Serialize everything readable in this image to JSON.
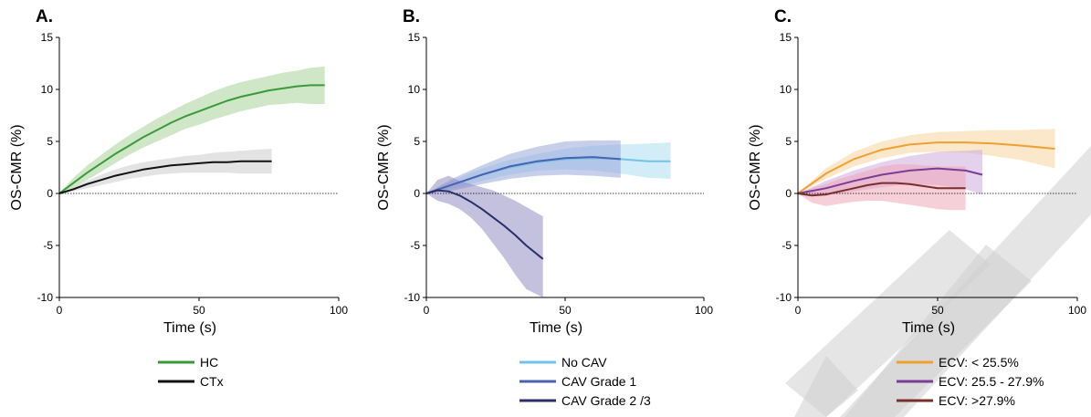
{
  "figure": {
    "background": "#ffffff",
    "watermark": "diagonal-grey-stripes"
  },
  "chart_data": [
    {
      "panel": "A.",
      "type": "line",
      "xlabel": "Time (s)",
      "ylabel": "OS-CMR (%)",
      "xlim": [
        0,
        100
      ],
      "ylim": [
        -10,
        15
      ],
      "xticks": [
        0,
        50,
        100
      ],
      "yticks": [
        -10,
        -5,
        0,
        5,
        10,
        15
      ],
      "reference_line_y": 0,
      "legend_position": "below",
      "series": [
        {
          "name": "HC",
          "color": "#3a9a3a",
          "band_color": "#9fd08e",
          "x": [
            0,
            5,
            10,
            15,
            20,
            25,
            30,
            35,
            40,
            45,
            50,
            55,
            60,
            65,
            70,
            75,
            80,
            85,
            90,
            95
          ],
          "y": [
            0,
            1.0,
            2.0,
            2.9,
            3.8,
            4.6,
            5.4,
            6.1,
            6.8,
            7.4,
            7.9,
            8.4,
            8.9,
            9.3,
            9.6,
            9.9,
            10.1,
            10.3,
            10.4,
            10.4
          ],
          "lower": [
            0,
            0.5,
            1.3,
            2.1,
            2.9,
            3.7,
            4.4,
            5.0,
            5.6,
            6.2,
            6.6,
            7.1,
            7.5,
            7.9,
            8.2,
            8.5,
            8.6,
            8.7,
            8.6,
            8.6
          ],
          "upper": [
            0,
            1.5,
            2.7,
            3.7,
            4.7,
            5.6,
            6.4,
            7.2,
            7.9,
            8.6,
            9.2,
            9.8,
            10.3,
            10.7,
            11.0,
            11.3,
            11.6,
            11.8,
            12.1,
            12.2
          ]
        },
        {
          "name": "CTx",
          "color": "#111111",
          "band_color": "#c7c7c7",
          "x": [
            0,
            5,
            10,
            15,
            20,
            25,
            30,
            35,
            40,
            45,
            50,
            55,
            60,
            65,
            70,
            76
          ],
          "y": [
            0,
            0.4,
            0.9,
            1.3,
            1.7,
            2.0,
            2.3,
            2.5,
            2.7,
            2.8,
            2.9,
            3.0,
            3.0,
            3.1,
            3.1,
            3.1
          ],
          "lower": [
            0,
            0.2,
            0.5,
            0.8,
            1.1,
            1.4,
            1.6,
            1.8,
            1.9,
            2.0,
            2.0,
            2.0,
            2.0,
            1.9,
            1.9,
            1.9
          ],
          "upper": [
            0,
            0.6,
            1.2,
            1.8,
            2.3,
            2.7,
            3.0,
            3.2,
            3.4,
            3.6,
            3.7,
            3.9,
            4.0,
            4.1,
            4.2,
            4.3
          ]
        }
      ]
    },
    {
      "panel": "B.",
      "type": "line",
      "xlabel": "Time (s)",
      "ylabel": "OS-CMR (%)",
      "xlim": [
        0,
        100
      ],
      "ylim": [
        -10,
        15
      ],
      "xticks": [
        0,
        50,
        100
      ],
      "yticks": [
        -10,
        -5,
        0,
        5,
        10,
        15
      ],
      "reference_line_y": 0,
      "legend_position": "below",
      "series": [
        {
          "name": "No CAV",
          "color": "#6fc3e8",
          "band_color": "#a8dcf2",
          "x": [
            0,
            10,
            20,
            30,
            40,
            50,
            60,
            70,
            80,
            88
          ],
          "y": [
            0,
            0.9,
            1.8,
            2.5,
            3.0,
            3.3,
            3.4,
            3.3,
            3.1,
            3.1
          ],
          "lower": [
            0,
            0.5,
            1.2,
            1.8,
            2.2,
            2.3,
            2.2,
            1.9,
            1.5,
            1.4
          ],
          "upper": [
            0,
            1.3,
            2.4,
            3.2,
            3.8,
            4.3,
            4.6,
            4.7,
            4.8,
            4.9
          ]
        },
        {
          "name": "CAV Grade 1",
          "color": "#4a62b0",
          "band_color": "#8fa0d8",
          "x": [
            0,
            10,
            20,
            30,
            40,
            50,
            60,
            70
          ],
          "y": [
            0,
            0.9,
            1.8,
            2.6,
            3.1,
            3.4,
            3.5,
            3.3
          ],
          "lower": [
            0,
            0.3,
            0.9,
            1.4,
            1.7,
            1.8,
            1.7,
            1.5
          ],
          "upper": [
            0,
            1.5,
            2.7,
            3.8,
            4.5,
            5.0,
            5.1,
            5.1
          ]
        },
        {
          "name": "CAV Grade 2 /3",
          "color": "#2a2f6b",
          "band_color": "#8a84bf",
          "x": [
            0,
            4,
            8,
            12,
            16,
            20,
            24,
            28,
            32,
            36,
            42
          ],
          "y": [
            0,
            0.3,
            0.2,
            -0.2,
            -0.8,
            -1.5,
            -2.3,
            -3.1,
            -4.0,
            -5.0,
            -6.3
          ],
          "lower": [
            0,
            -0.7,
            -1.0,
            -1.5,
            -2.3,
            -3.4,
            -4.8,
            -6.2,
            -7.8,
            -9.2,
            -10
          ],
          "upper": [
            0,
            1.3,
            1.7,
            1.2,
            0.9,
            0.6,
            0.3,
            -0.2,
            -0.7,
            -1.3,
            -2.2
          ]
        }
      ]
    },
    {
      "panel": "C.",
      "type": "line",
      "xlabel": "Time (s)",
      "ylabel": "OS-CMR (%)",
      "xlim": [
        0,
        100
      ],
      "ylim": [
        -10,
        15
      ],
      "xticks": [
        0,
        50,
        100
      ],
      "yticks": [
        -10,
        -5,
        0,
        5,
        10,
        15
      ],
      "reference_line_y": 0,
      "legend_position": "below",
      "series": [
        {
          "name": "ECV: < 25.5%",
          "color": "#f0a030",
          "band_color": "#f7cf95",
          "x": [
            0,
            10,
            20,
            30,
            40,
            50,
            60,
            70,
            80,
            92
          ],
          "y": [
            0,
            1.9,
            3.3,
            4.2,
            4.7,
            4.9,
            4.9,
            4.8,
            4.6,
            4.3
          ],
          "lower": [
            0,
            1.4,
            2.6,
            3.4,
            3.9,
            4.0,
            3.9,
            3.6,
            3.2,
            2.4
          ],
          "upper": [
            0,
            2.4,
            4.0,
            5.0,
            5.6,
            5.9,
            6.0,
            6.1,
            6.1,
            6.2
          ]
        },
        {
          "name": "ECV: 25.5 - 27.9%",
          "color": "#7a3d96",
          "band_color": "#c9a6dc",
          "x": [
            0,
            10,
            20,
            30,
            40,
            50,
            60,
            66
          ],
          "y": [
            0,
            0.5,
            1.2,
            1.8,
            2.2,
            2.4,
            2.2,
            1.8
          ],
          "lower": [
            0,
            -0.2,
            0.2,
            0.6,
            0.9,
            0.8,
            0.4,
            -0.1
          ],
          "upper": [
            0,
            1.2,
            2.2,
            3.0,
            3.6,
            4.0,
            4.1,
            4.2
          ]
        },
        {
          "name": "ECV: >27.9%",
          "color": "#7a2e2a",
          "band_color": "#f0a0b2",
          "x": [
            0,
            5,
            10,
            15,
            20,
            25,
            30,
            35,
            40,
            45,
            50,
            55,
            60
          ],
          "y": [
            0,
            -0.2,
            -0.1,
            0.2,
            0.5,
            0.8,
            1.0,
            1.0,
            0.9,
            0.7,
            0.5,
            0.5,
            0.5
          ],
          "lower": [
            0,
            -0.9,
            -1.2,
            -1.0,
            -0.8,
            -0.7,
            -0.7,
            -0.9,
            -1.1,
            -1.3,
            -1.5,
            -1.6,
            -1.6
          ],
          "upper": [
            0,
            0.5,
            0.9,
            1.4,
            1.8,
            2.2,
            2.6,
            2.8,
            2.8,
            2.7,
            2.6,
            2.6,
            2.6
          ]
        }
      ]
    }
  ]
}
